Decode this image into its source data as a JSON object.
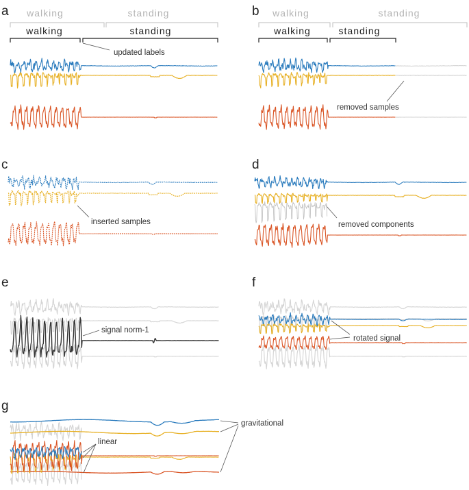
{
  "colors": {
    "x": "#2a7bbd",
    "y": "#e7b024",
    "z": "#d95323",
    "norm": "#333333",
    "faded": "#d4d4d4",
    "bracket_old": "#bdbdbd",
    "bracket_new": "#222222",
    "leader": "#555555"
  },
  "panels": {
    "a": {
      "label": "a",
      "header_old": {
        "left": "walking",
        "right": "standing"
      },
      "header_new": {
        "left": "walking",
        "right": "standing"
      },
      "annotation": "updated labels"
    },
    "b": {
      "label": "b",
      "header_old": {
        "left": "walking",
        "right": "standing"
      },
      "header_new": {
        "left": "walking",
        "right": "standing"
      },
      "annotation": "removed samples"
    },
    "c": {
      "label": "c",
      "annotation": "inserted samples"
    },
    "d": {
      "label": "d",
      "annotation": "removed components"
    },
    "e": {
      "label": "e",
      "annotation": "signal norm-1"
    },
    "f": {
      "label": "f",
      "annotation": "rotated signal"
    },
    "g": {
      "label": "g",
      "annotation_linear": "linear",
      "annotation_gravitational": "gravitational"
    }
  }
}
